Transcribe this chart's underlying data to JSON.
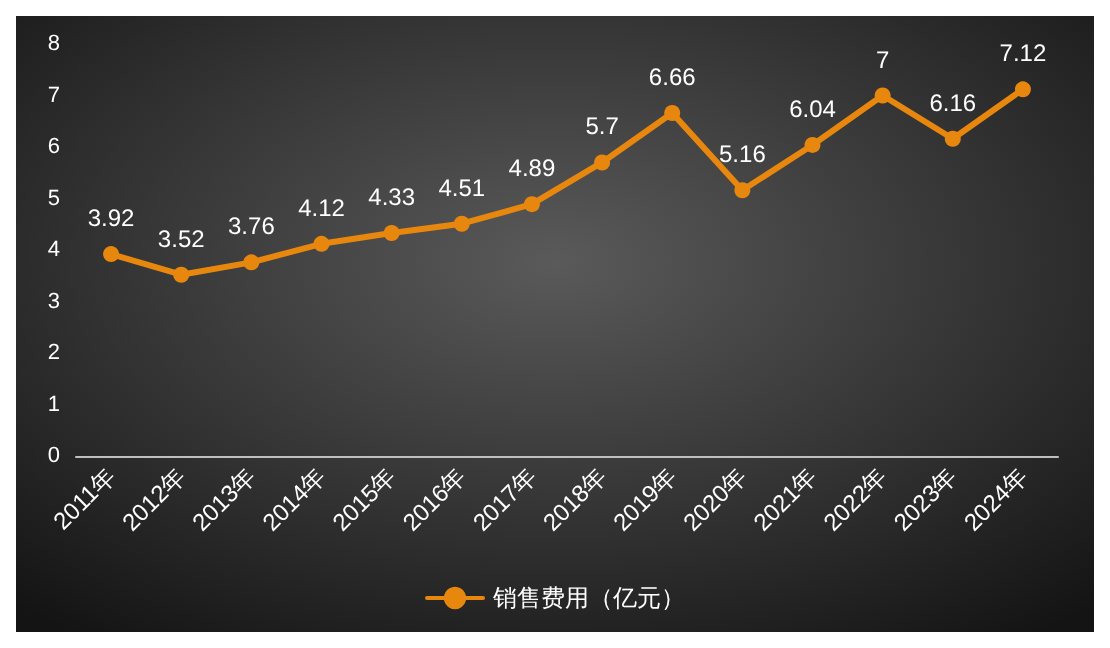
{
  "chart_data": {
    "type": "line",
    "categories": [
      "2011年",
      "2012年",
      "2013年",
      "2014年",
      "2015年",
      "2016年",
      "2017年",
      "2018年",
      "2019年",
      "2020年",
      "2021年",
      "2022年",
      "2023年",
      "2024年"
    ],
    "series": [
      {
        "name": "销售费用（亿元）",
        "color": "#e8870e",
        "values": [
          3.92,
          3.52,
          3.76,
          4.12,
          4.33,
          4.51,
          4.89,
          5.7,
          6.66,
          5.16,
          6.04,
          7,
          6.16,
          7.12
        ]
      }
    ],
    "ylim": [
      0,
      8
    ],
    "yticks": [
      0,
      1,
      2,
      3,
      4,
      5,
      6,
      7,
      8
    ],
    "grid": false,
    "legend": "bottom",
    "marker": "circle",
    "line_style": "solid",
    "data_labels": true
  }
}
